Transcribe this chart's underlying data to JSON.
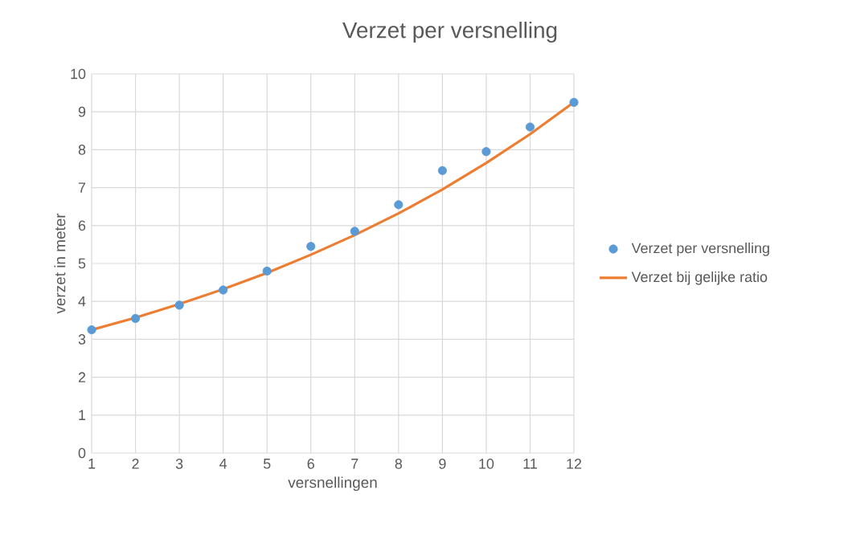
{
  "chart_data": {
    "type": "scatter",
    "title": "Verzet per versnelling",
    "xlabel": "versnellingen",
    "ylabel": "verzet in meter",
    "x": [
      1,
      2,
      3,
      4,
      5,
      6,
      7,
      8,
      9,
      10,
      11,
      12
    ],
    "series": [
      {
        "name": "Verzet per versnelling",
        "color": "#5b9bd5",
        "marker": "circle",
        "values": [
          3.25,
          3.55,
          3.9,
          4.3,
          4.8,
          5.45,
          5.85,
          6.55,
          7.45,
          7.95,
          8.6,
          9.25
        ]
      },
      {
        "name": "Verzet bij gelijke ratio",
        "type": "line",
        "color": "#ed7d31",
        "marker": "none",
        "line_style": "solid",
        "values": [
          3.25,
          3.57,
          3.93,
          4.32,
          4.75,
          5.23,
          5.75,
          6.32,
          6.95,
          7.65,
          8.41,
          9.25
        ]
      }
    ],
    "xlim": [
      1,
      12
    ],
    "ylim": [
      0,
      10
    ],
    "xticks": [
      1,
      2,
      3,
      4,
      5,
      6,
      7,
      8,
      9,
      10,
      11,
      12
    ],
    "yticks": [
      0,
      1,
      2,
      3,
      4,
      5,
      6,
      7,
      8,
      9,
      10
    ],
    "grid": true,
    "legend": "right"
  }
}
